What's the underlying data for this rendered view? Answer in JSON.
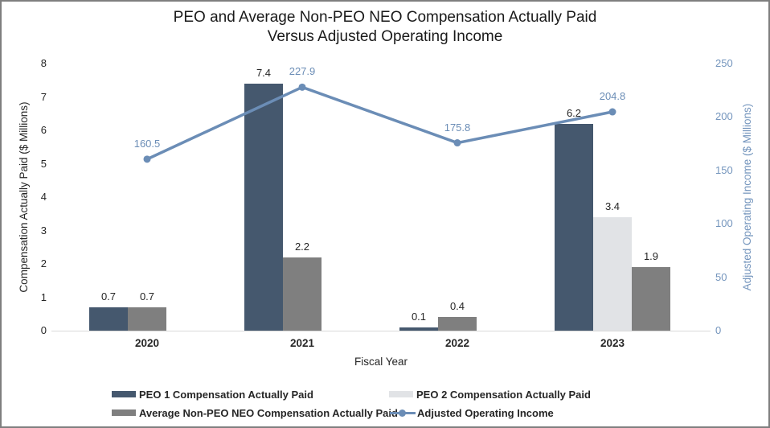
{
  "title": {
    "line1": "PEO and Average Non-PEO NEO Compensation Actually Paid",
    "line2": "Versus Adjusted Operating Income"
  },
  "chart_data": {
    "type": "combo-bar-line",
    "categories": [
      "2020",
      "2021",
      "2022",
      "2023"
    ],
    "series": [
      {
        "name": "PEO 1 Compensation Actually Paid",
        "type": "bar",
        "axis": "left",
        "color": "#45586e",
        "values": [
          0.7,
          7.4,
          0.1,
          6.2
        ]
      },
      {
        "name": "PEO 2 Compensation Actually Paid",
        "type": "bar",
        "axis": "left",
        "color": "#e1e3e6",
        "values": [
          null,
          null,
          null,
          3.4
        ]
      },
      {
        "name": "Average Non-PEO NEO Compensation Actually Paid",
        "type": "bar",
        "axis": "left",
        "color": "#7f7f7f",
        "values": [
          0.7,
          2.2,
          0.4,
          1.9
        ]
      },
      {
        "name": "Adjusted Operating Income",
        "type": "line",
        "axis": "right",
        "color": "#6b8db6",
        "values": [
          160.5,
          227.9,
          175.8,
          204.8
        ]
      }
    ],
    "left_axis": {
      "title": "Compensation Actually Paid ($ Millions)",
      "min": 0,
      "max": 8,
      "ticks": [
        0,
        1,
        2,
        3,
        4,
        5,
        6,
        7,
        8
      ]
    },
    "right_axis": {
      "title": "Adjusted Operating Income ($ Millions)",
      "min": 0,
      "max": 250,
      "ticks": [
        0,
        50,
        100,
        150,
        200,
        250
      ]
    },
    "x_axis": {
      "title": "Fiscal Year"
    },
    "data_labels": true,
    "grid": false,
    "legend_position": "bottom"
  }
}
